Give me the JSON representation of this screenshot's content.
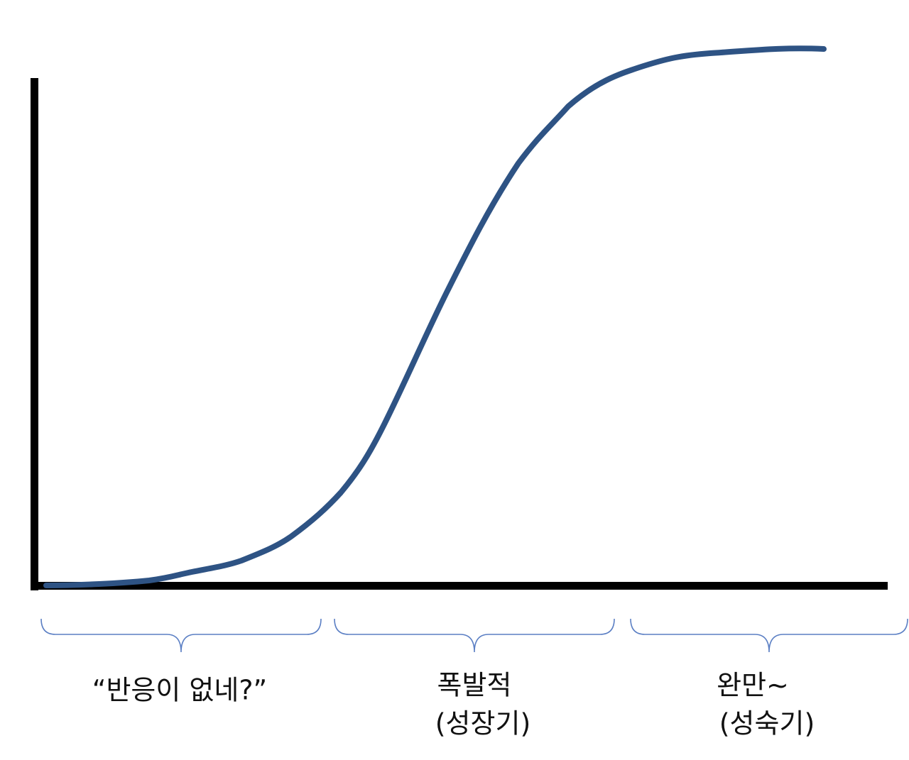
{
  "phases": [
    {
      "lines": [
        "“반응이 없네?”"
      ]
    },
    {
      "lines": [
        "폭발적",
        "(성장기)"
      ]
    },
    {
      "lines": [
        "완만~",
        "(성숙기)"
      ]
    }
  ]
}
